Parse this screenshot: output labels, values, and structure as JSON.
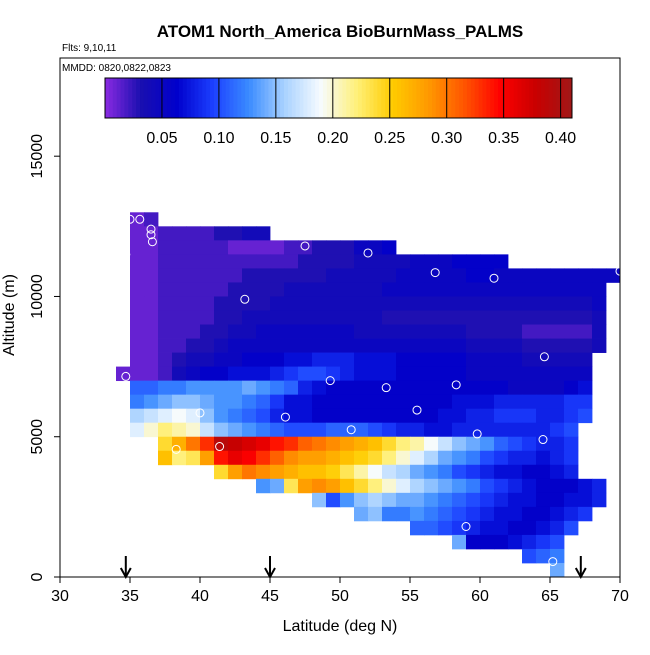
{
  "chart_data": {
    "type": "heatmap",
    "title": "ATOM1 North_America BioBurnMass_PALMS",
    "flights_label": "Flts: 9,10,11",
    "date_label": "MMDD: 0820,0822,0823",
    "xlabel": "Latitude (deg N)",
    "ylabel": "Altitude (m)",
    "xlim": [
      30,
      70
    ],
    "ylim": [
      0,
      18500
    ],
    "xticks": [
      30,
      35,
      40,
      45,
      50,
      55,
      60,
      65,
      70
    ],
    "yticks": [
      0,
      5000,
      10000,
      15000
    ],
    "colorbar": {
      "range": [
        0.0,
        0.41
      ],
      "ticks": [
        0.05,
        0.1,
        0.15,
        0.2,
        0.25,
        0.3,
        0.35,
        0.4
      ],
      "tick_labels": [
        "0.05",
        "0.10",
        "0.15",
        "0.20",
        "0.25",
        "0.30",
        "0.35",
        "0.40"
      ],
      "colors": [
        "#8a2be2",
        "#1a0fb0",
        "#0000cc",
        "#1c3fff",
        "#3a8bff",
        "#a9d2ff",
        "#f6fbff",
        "#fff07a",
        "#ffcc00",
        "#ff9900",
        "#ff5500",
        "#ff0000",
        "#c80000",
        "#a01818"
      ]
    },
    "arrows_at_latitude": [
      34.7,
      45.0,
      67.2
    ],
    "cell_size": {
      "dlat": 1,
      "dalt": 500
    },
    "rows": [
      {
        "alt": 12750,
        "lon0": 35,
        "values": [
          0.01,
          0.02
        ]
      },
      {
        "alt": 12250,
        "lon0": 35,
        "values": [
          0.01,
          0.01,
          0.02,
          0.02,
          0.02,
          0.02,
          0.03,
          0.03,
          0.04,
          0.04
        ]
      },
      {
        "alt": 11750,
        "lon0": 35,
        "values": [
          0.01,
          0.01,
          0.02,
          0.02,
          0.02,
          0.02,
          0.02,
          0.01,
          0.01,
          0.01,
          0.01,
          0.02,
          0.02,
          0.03,
          0.03,
          0.03,
          0.05,
          0.05,
          0.06
        ]
      },
      {
        "alt": 11250,
        "lon0": 35,
        "values": [
          0.01,
          0.01,
          0.02,
          0.02,
          0.02,
          0.02,
          0.02,
          0.02,
          0.02,
          0.02,
          0.02,
          0.02,
          0.03,
          0.03,
          0.03,
          0.03,
          0.04,
          0.04,
          0.04,
          0.04,
          0.05,
          0.05,
          0.05,
          0.06,
          0.06,
          0.06,
          0.06
        ]
      },
      {
        "alt": 10750,
        "lon0": 35,
        "values": [
          0.01,
          0.01,
          0.02,
          0.02,
          0.02,
          0.02,
          0.02,
          0.02,
          0.03,
          0.03,
          0.03,
          0.03,
          0.03,
          0.03,
          0.04,
          0.04,
          0.04,
          0.04,
          0.04,
          0.05,
          0.05,
          0.05,
          0.05,
          0.05,
          0.06,
          0.06,
          0.05,
          0.05,
          0.05,
          0.05,
          0.05,
          0.05,
          0.05,
          0.05,
          0.05
        ]
      },
      {
        "alt": 10250,
        "lon0": 35,
        "values": [
          0.01,
          0.01,
          0.02,
          0.02,
          0.02,
          0.02,
          0.02,
          0.03,
          0.03,
          0.03,
          0.03,
          0.04,
          0.04,
          0.04,
          0.04,
          0.04,
          0.04,
          0.04,
          0.05,
          0.05,
          0.05,
          0.05,
          0.05,
          0.05,
          0.05,
          0.05,
          0.05,
          0.05,
          0.05,
          0.05,
          0.05,
          0.05,
          0.05,
          0.05
        ]
      },
      {
        "alt": 9750,
        "lon0": 35,
        "values": [
          0.01,
          0.01,
          0.02,
          0.02,
          0.02,
          0.02,
          0.03,
          0.03,
          0.03,
          0.03,
          0.04,
          0.04,
          0.04,
          0.04,
          0.04,
          0.04,
          0.04,
          0.04,
          0.04,
          0.04,
          0.04,
          0.04,
          0.04,
          0.04,
          0.04,
          0.04,
          0.04,
          0.04,
          0.04,
          0.04,
          0.04,
          0.04,
          0.04,
          0.05
        ]
      },
      {
        "alt": 9250,
        "lon0": 35,
        "values": [
          0.01,
          0.01,
          0.02,
          0.02,
          0.02,
          0.02,
          0.03,
          0.03,
          0.04,
          0.04,
          0.04,
          0.04,
          0.04,
          0.04,
          0.04,
          0.04,
          0.04,
          0.04,
          0.03,
          0.03,
          0.03,
          0.03,
          0.03,
          0.03,
          0.03,
          0.03,
          0.03,
          0.03,
          0.03,
          0.03,
          0.03,
          0.03,
          0.03,
          0.04
        ]
      },
      {
        "alt": 8750,
        "lon0": 35,
        "values": [
          0.01,
          0.01,
          0.02,
          0.02,
          0.02,
          0.03,
          0.03,
          0.04,
          0.04,
          0.05,
          0.05,
          0.05,
          0.05,
          0.05,
          0.05,
          0.05,
          0.04,
          0.04,
          0.04,
          0.04,
          0.04,
          0.04,
          0.04,
          0.04,
          0.03,
          0.03,
          0.03,
          0.03,
          0.02,
          0.02,
          0.02,
          0.02,
          0.02,
          0.04
        ]
      },
      {
        "alt": 8250,
        "lon0": 35,
        "values": [
          0.01,
          0.01,
          0.02,
          0.02,
          0.03,
          0.03,
          0.04,
          0.05,
          0.05,
          0.05,
          0.05,
          0.05,
          0.05,
          0.05,
          0.05,
          0.05,
          0.05,
          0.05,
          0.05,
          0.05,
          0.05,
          0.05,
          0.05,
          0.05,
          0.04,
          0.04,
          0.04,
          0.04,
          0.03,
          0.03,
          0.03,
          0.03,
          0.03,
          0.04
        ]
      },
      {
        "alt": 7750,
        "lon0": 35,
        "values": [
          0.01,
          0.01,
          0.02,
          0.03,
          0.04,
          0.04,
          0.05,
          0.05,
          0.06,
          0.06,
          0.06,
          0.07,
          0.07,
          0.08,
          0.08,
          0.08,
          0.07,
          0.07,
          0.07,
          0.06,
          0.06,
          0.06,
          0.06,
          0.06,
          0.05,
          0.05,
          0.05,
          0.05,
          0.04,
          0.04,
          0.04,
          0.04,
          0.04
        ]
      },
      {
        "alt": 7250,
        "lon0": 34,
        "values": [
          0.01,
          0.01,
          0.01,
          0.02,
          0.04,
          0.05,
          0.06,
          0.06,
          0.07,
          0.07,
          0.07,
          0.08,
          0.09,
          0.1,
          0.1,
          0.09,
          0.08,
          0.07,
          0.07,
          0.07,
          0.06,
          0.06,
          0.06,
          0.06,
          0.06,
          0.05,
          0.05,
          0.05,
          0.05,
          0.05,
          0.05,
          0.05,
          0.05,
          0.05
        ]
      },
      {
        "alt": 6750,
        "lon0": 35,
        "values": [
          0.11,
          0.11,
          0.12,
          0.12,
          0.13,
          0.13,
          0.13,
          0.13,
          0.14,
          0.13,
          0.12,
          0.11,
          0.08,
          0.07,
          0.06,
          0.06,
          0.06,
          0.06,
          0.06,
          0.06,
          0.06,
          0.06,
          0.06,
          0.06,
          0.06,
          0.06,
          0.06,
          0.05,
          0.05,
          0.05,
          0.05,
          0.06,
          0.07
        ]
      },
      {
        "alt": 6250,
        "lon0": 35,
        "values": [
          0.12,
          0.13,
          0.14,
          0.15,
          0.15,
          0.14,
          0.13,
          0.13,
          0.12,
          0.11,
          0.09,
          0.07,
          0.07,
          0.06,
          0.06,
          0.06,
          0.06,
          0.06,
          0.06,
          0.06,
          0.06,
          0.06,
          0.06,
          0.07,
          0.07,
          0.07,
          0.08,
          0.08,
          0.08,
          0.08,
          0.08,
          0.09,
          0.09
        ]
      },
      {
        "alt": 5750,
        "lon0": 35,
        "values": [
          0.16,
          0.17,
          0.18,
          0.19,
          0.18,
          0.15,
          0.13,
          0.12,
          0.11,
          0.1,
          0.08,
          0.07,
          0.07,
          0.06,
          0.06,
          0.06,
          0.06,
          0.06,
          0.06,
          0.06,
          0.06,
          0.06,
          0.07,
          0.07,
          0.08,
          0.08,
          0.09,
          0.09,
          0.09,
          0.08,
          0.08,
          0.09,
          0.1
        ]
      },
      {
        "alt": 5250,
        "lon0": 35,
        "values": [
          0.18,
          0.2,
          0.22,
          0.21,
          0.2,
          0.17,
          0.15,
          0.14,
          0.13,
          0.12,
          0.11,
          0.1,
          0.1,
          0.1,
          0.11,
          0.11,
          0.11,
          0.1,
          0.09,
          0.08,
          0.08,
          0.07,
          0.07,
          0.08,
          0.08,
          0.08,
          0.08,
          0.08,
          0.08,
          0.08,
          0.09,
          0.1
        ]
      },
      {
        "alt": 4750,
        "lon0": 37,
        "values": [
          0.24,
          0.27,
          0.3,
          0.33,
          0.39,
          0.38,
          0.37,
          0.36,
          0.34,
          0.33,
          0.31,
          0.3,
          0.29,
          0.28,
          0.27,
          0.26,
          0.24,
          0.22,
          0.21,
          0.19,
          0.17,
          0.15,
          0.14,
          0.13,
          0.11,
          0.1,
          0.09,
          0.08,
          0.08,
          0.09
        ]
      },
      {
        "alt": 4250,
        "lon0": 37,
        "values": [
          0.26,
          0.22,
          0.23,
          0.28,
          0.34,
          0.36,
          0.35,
          0.33,
          0.31,
          0.29,
          0.28,
          0.28,
          0.27,
          0.26,
          0.25,
          0.24,
          0.22,
          0.2,
          0.18,
          0.16,
          0.14,
          0.13,
          0.12,
          0.1,
          0.09,
          0.08,
          0.08,
          0.07,
          0.08,
          0.09
        ]
      },
      {
        "alt": 3750,
        "lon0": 41,
        "values": [
          0.24,
          0.28,
          0.3,
          0.29,
          0.28,
          0.27,
          0.26,
          0.26,
          0.25,
          0.23,
          0.21,
          0.19,
          0.17,
          0.16,
          0.14,
          0.13,
          0.12,
          0.1,
          0.09,
          0.08,
          0.07,
          0.07,
          0.06,
          0.06,
          0.07,
          0.08
        ]
      },
      {
        "alt": 3250,
        "lon0": 44,
        "values": [
          0.13,
          0.14,
          0.23,
          0.28,
          0.29,
          0.28,
          0.26,
          0.24,
          0.22,
          0.2,
          0.18,
          0.16,
          0.15,
          0.14,
          0.13,
          0.12,
          0.1,
          0.09,
          0.08,
          0.07,
          0.06,
          0.06,
          0.06,
          0.07,
          0.08
        ]
      },
      {
        "alt": 2750,
        "lon0": 48,
        "values": [
          0.15,
          0.1,
          0.13,
          0.15,
          0.16,
          0.15,
          0.14,
          0.14,
          0.13,
          0.12,
          0.11,
          0.1,
          0.09,
          0.08,
          0.07,
          0.07,
          0.06,
          0.06,
          0.07,
          0.07,
          0.08
        ]
      },
      {
        "alt": 2250,
        "lon0": 51,
        "values": [
          0.14,
          0.15,
          0.12,
          0.12,
          0.13,
          0.12,
          0.11,
          0.1,
          0.09,
          0.08,
          0.07,
          0.07,
          0.06,
          0.06,
          0.07,
          0.08,
          0.09
        ]
      },
      {
        "alt": 1750,
        "lon0": 55,
        "values": [
          0.11,
          0.11,
          0.1,
          0.09,
          0.08,
          0.07,
          0.07,
          0.06,
          0.06,
          0.07,
          0.08,
          0.1
        ]
      },
      {
        "alt": 1250,
        "lon0": 58,
        "values": [
          0.14,
          0.06,
          0.06,
          0.06,
          0.07,
          0.08,
          0.09,
          0.1
        ]
      },
      {
        "alt": 750,
        "lon0": 63,
        "values": [
          0.1,
          0.11,
          0.12
        ]
      },
      {
        "alt": 250,
        "lon0": 65,
        "values": [
          0.14
        ]
      }
    ],
    "sample_points": [
      [
        35.0,
        12750
      ],
      [
        35.7,
        12750
      ],
      [
        36.5,
        12400
      ],
      [
        36.5,
        12200
      ],
      [
        36.6,
        11950
      ],
      [
        34.7,
        11500
      ],
      [
        47.5,
        11800
      ],
      [
        52.0,
        11550
      ],
      [
        56.8,
        10850
      ],
      [
        61.0,
        10650
      ],
      [
        70.0,
        10900
      ],
      [
        43.2,
        9900
      ],
      [
        64.6,
        7850
      ],
      [
        34.7,
        7150
      ],
      [
        49.3,
        7000
      ],
      [
        53.3,
        6750
      ],
      [
        58.3,
        6850
      ],
      [
        55.5,
        5950
      ],
      [
        40.0,
        5850
      ],
      [
        46.1,
        5700
      ],
      [
        50.8,
        5250
      ],
      [
        59.8,
        5100
      ],
      [
        64.5,
        4900
      ],
      [
        41.4,
        4650
      ],
      [
        38.3,
        4550
      ],
      [
        59.0,
        1800
      ],
      [
        65.2,
        550
      ]
    ]
  }
}
